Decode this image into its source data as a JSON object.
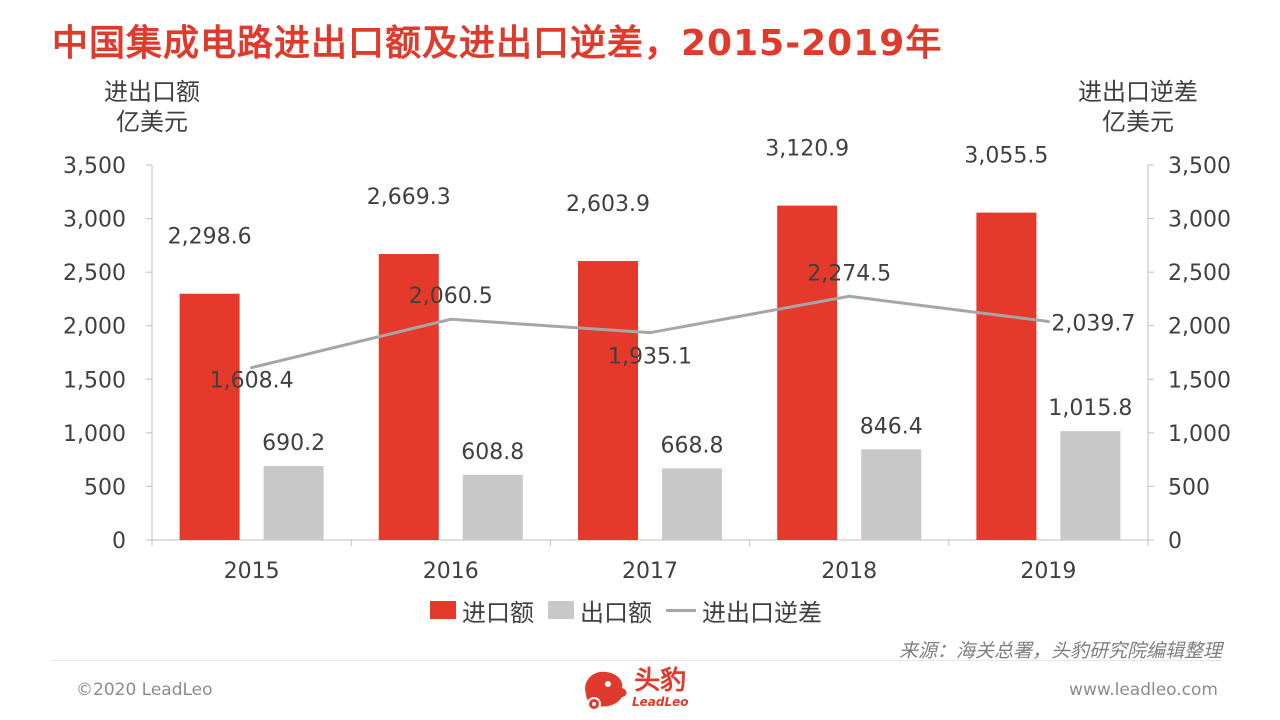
{
  "title": "中国集成电路进出口额及进出口逆差，2015-2019年",
  "axis_titles": {
    "left_line1": "进出口额",
    "left_line2": "亿美元",
    "right_line1": "进出口逆差",
    "right_line2": "亿美元"
  },
  "legend": {
    "import": "进口额",
    "export": "出口额",
    "deficit": "进出口逆差"
  },
  "source": "来源：海关总署，头豹研究院编辑整理",
  "footer": {
    "copyright": "©2020 LeadLeo",
    "website": "www.leadleo.com",
    "logo_cn": "头豹",
    "logo_en": "LeadLeo"
  },
  "colors": {
    "import": "#e53a2b",
    "export": "#c8c8c8",
    "deficit": "#a6a6a6",
    "title": "#e03a2c"
  },
  "chart_data": {
    "type": "bar",
    "categories": [
      "2015",
      "2016",
      "2017",
      "2018",
      "2019"
    ],
    "series": [
      {
        "name": "进口额",
        "type": "bar",
        "axis": "left",
        "values": [
          2298.6,
          2669.3,
          2603.9,
          3120.9,
          3055.5
        ],
        "labels": [
          "2,298.6",
          "2,669.3",
          "2,603.9",
          "3,120.9",
          "3,055.5"
        ]
      },
      {
        "name": "出口额",
        "type": "bar",
        "axis": "left",
        "values": [
          690.2,
          608.8,
          668.8,
          846.4,
          1015.8
        ],
        "labels": [
          "690.2",
          "608.8",
          "668.8",
          "846.4",
          "1,015.8"
        ]
      },
      {
        "name": "进出口逆差",
        "type": "line",
        "axis": "right",
        "values": [
          1608.4,
          2060.5,
          1935.1,
          2274.5,
          2039.7
        ],
        "labels": [
          "1,608.4",
          "2,060.5",
          "1,935.1",
          "2,274.5",
          "2,039.7"
        ]
      }
    ],
    "ylim": [
      0,
      3500
    ],
    "y2lim": [
      0,
      3500
    ],
    "ticks": [
      "0",
      "500",
      "1,000",
      "1,500",
      "2,000",
      "2,500",
      "3,000",
      "3,500"
    ],
    "grid": false,
    "legend_position": "bottom"
  }
}
